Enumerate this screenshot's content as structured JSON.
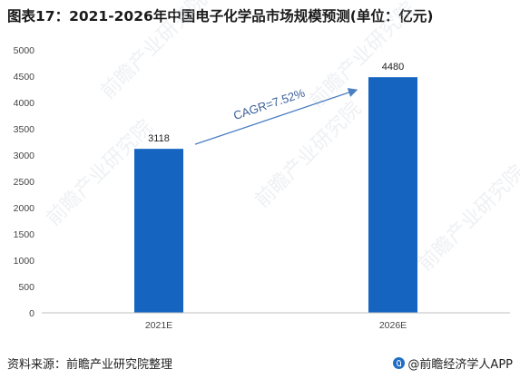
{
  "title": "图表17：2021-2026年中国电子化学品市场规模预测(单位：亿元)",
  "footer": {
    "source": "资料来源：前瞻产业研究院整理",
    "brand": "@前瞻经济学人APP"
  },
  "watermark": "前瞻产业研究院",
  "colors": {
    "bar": "#1565c0",
    "arrow": "#4a7fc1",
    "axis": "#bfbfbf"
  },
  "annotation": "CAGR=7.52%",
  "chart_data": {
    "type": "bar",
    "categories": [
      "2021E",
      "2026E"
    ],
    "values": [
      3118,
      4480
    ],
    "ylim": [
      0,
      5000
    ],
    "yticks": [
      0,
      500,
      1000,
      1500,
      2000,
      2500,
      3000,
      3500,
      4000,
      4500,
      5000
    ],
    "xlabel": "",
    "ylabel": "",
    "grid": false,
    "legend": "none"
  }
}
